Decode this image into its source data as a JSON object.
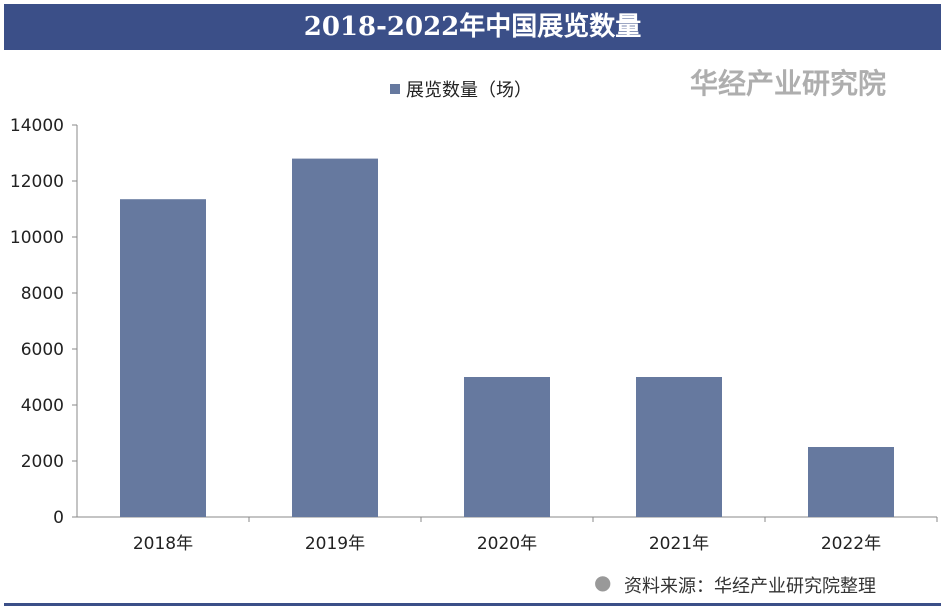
{
  "chart_data": {
    "type": "bar",
    "title": "2018-2022年中国展览数量",
    "categories": [
      "2018年",
      "2019年",
      "2020年",
      "2021年",
      "2022年"
    ],
    "series": [
      {
        "name": "展览数量（场）",
        "values": [
          11350,
          12800,
          5000,
          5000,
          2500
        ]
      }
    ],
    "xlabel": "",
    "ylabel": "",
    "ylim": [
      0,
      14000
    ],
    "yticks": [
      0,
      2000,
      4000,
      6000,
      8000,
      10000,
      12000,
      14000
    ],
    "legend": "top-center",
    "grid": false,
    "color": "#66799f"
  },
  "watermark": "华经产业研究院",
  "source": "资料来源：华经产业研究院整理"
}
